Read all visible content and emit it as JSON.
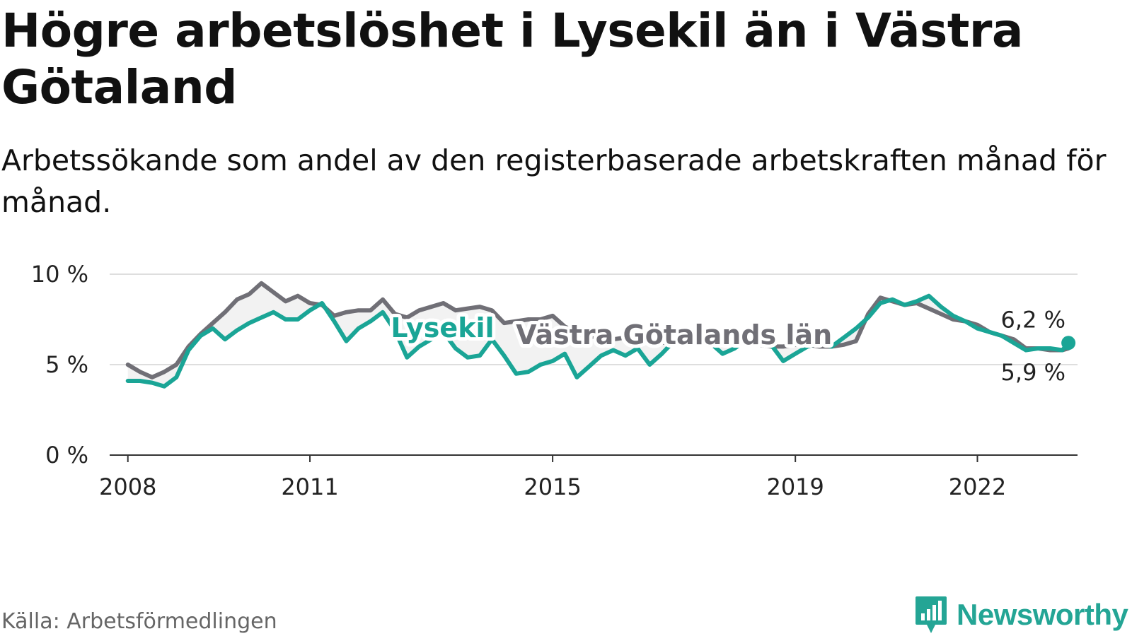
{
  "title": "Högre arbetslöshet i Lysekil än i Västra Götaland",
  "subtitle": "Arbetssökande som andel av den registerbaserade arbetskraften månad för månad.",
  "source": "Källa: Arbetsförmedlingen",
  "brand": "Newsworthy",
  "colors": {
    "lysekil": "#1aa596",
    "region": "#706f76",
    "fill": "#f2f2f2",
    "grid": "#dedede",
    "axis": "#333333"
  },
  "chart_data": {
    "type": "line",
    "title": "Högre arbetslöshet i Lysekil än i Västra Götaland",
    "xlabel": "",
    "ylabel": "",
    "xlim": [
      2007.7,
      2023.65
    ],
    "ylim": [
      0,
      10
    ],
    "yticks": [
      0,
      5,
      10
    ],
    "ytick_labels": [
      "0 %",
      "5 %",
      "10 %"
    ],
    "xticks": [
      2008,
      2011,
      2015,
      2019,
      2022
    ],
    "xtick_labels": [
      "2008",
      "2011",
      "2015",
      "2019",
      "2022"
    ],
    "grid": true,
    "legend": "inline labels",
    "series": [
      {
        "name": "Lysekil",
        "label": "Lysekil",
        "label_year": 2012.8,
        "label_value": 7.0,
        "end_label": "6,2 %",
        "x": [
          2008.0,
          2008.2,
          2008.4,
          2008.6,
          2008.8,
          2009.0,
          2009.2,
          2009.4,
          2009.6,
          2009.8,
          2010.0,
          2010.2,
          2010.4,
          2010.6,
          2010.8,
          2011.0,
          2011.2,
          2011.4,
          2011.6,
          2011.8,
          2012.0,
          2012.2,
          2012.4,
          2012.6,
          2012.8,
          2013.0,
          2013.2,
          2013.4,
          2013.6,
          2013.8,
          2014.0,
          2014.2,
          2014.4,
          2014.6,
          2014.8,
          2015.0,
          2015.2,
          2015.4,
          2015.6,
          2015.8,
          2016.0,
          2016.2,
          2016.4,
          2016.6,
          2016.8,
          2017.0,
          2017.2,
          2017.4,
          2017.6,
          2017.8,
          2018.0,
          2018.2,
          2018.4,
          2018.6,
          2018.8,
          2019.0,
          2019.2,
          2019.4,
          2019.6,
          2019.8,
          2020.0,
          2020.2,
          2020.4,
          2020.6,
          2020.8,
          2021.0,
          2021.2,
          2021.4,
          2021.6,
          2021.8,
          2022.0,
          2022.2,
          2022.4,
          2022.6,
          2022.8,
          2023.0,
          2023.2,
          2023.4,
          2023.5
        ],
        "values": [
          4.1,
          4.1,
          4.0,
          3.8,
          4.3,
          5.8,
          6.6,
          7.0,
          6.4,
          6.9,
          7.3,
          7.6,
          7.9,
          7.5,
          7.5,
          8.0,
          8.4,
          7.4,
          6.3,
          7.0,
          7.4,
          7.9,
          6.9,
          5.4,
          6.0,
          6.4,
          6.8,
          5.9,
          5.4,
          5.5,
          6.4,
          5.5,
          4.5,
          4.6,
          5.0,
          5.2,
          5.6,
          4.3,
          4.9,
          5.5,
          5.8,
          5.5,
          5.9,
          5.0,
          5.6,
          6.3,
          6.6,
          6.4,
          6.2,
          5.6,
          5.9,
          6.4,
          6.3,
          6.1,
          5.2,
          5.6,
          6.0,
          6.2,
          6.0,
          6.5,
          7.0,
          7.6,
          8.4,
          8.6,
          8.3,
          8.5,
          8.8,
          8.2,
          7.7,
          7.4,
          7.0,
          6.8,
          6.6,
          6.2,
          5.8,
          5.9,
          5.9,
          5.8,
          6.2
        ]
      },
      {
        "name": "Västra Götalands län",
        "label": "Västra Götalands län",
        "label_year": 2017.0,
        "label_value": 6.6,
        "end_label": "5,9 %",
        "x": [
          2008.0,
          2008.2,
          2008.4,
          2008.6,
          2008.8,
          2009.0,
          2009.2,
          2009.4,
          2009.6,
          2009.8,
          2010.0,
          2010.2,
          2010.4,
          2010.6,
          2010.8,
          2011.0,
          2011.2,
          2011.4,
          2011.6,
          2011.8,
          2012.0,
          2012.2,
          2012.4,
          2012.6,
          2012.8,
          2013.0,
          2013.2,
          2013.4,
          2013.6,
          2013.8,
          2014.0,
          2014.2,
          2014.4,
          2014.6,
          2014.8,
          2015.0,
          2015.2,
          2015.4,
          2015.6,
          2015.8,
          2016.0,
          2016.2,
          2016.4,
          2016.6,
          2016.8,
          2017.0,
          2017.2,
          2017.4,
          2017.6,
          2017.8,
          2018.0,
          2018.2,
          2018.4,
          2018.6,
          2018.8,
          2019.0,
          2019.2,
          2019.4,
          2019.6,
          2019.8,
          2020.0,
          2020.2,
          2020.4,
          2020.6,
          2020.8,
          2021.0,
          2021.2,
          2021.4,
          2021.6,
          2021.8,
          2022.0,
          2022.2,
          2022.4,
          2022.6,
          2022.8,
          2023.0,
          2023.2,
          2023.4,
          2023.5
        ],
        "values": [
          5.0,
          4.6,
          4.3,
          4.6,
          5.0,
          6.0,
          6.7,
          7.3,
          7.9,
          8.6,
          8.9,
          9.5,
          9.0,
          8.5,
          8.8,
          8.4,
          8.3,
          7.7,
          7.9,
          8.0,
          8.0,
          8.6,
          7.8,
          7.6,
          8.0,
          8.2,
          8.4,
          8.0,
          8.1,
          8.2,
          8.0,
          7.3,
          7.4,
          7.5,
          7.5,
          7.7,
          7.1,
          6.8,
          6.6,
          6.4,
          6.4,
          6.5,
          6.3,
          6.2,
          6.2,
          6.3,
          6.5,
          6.6,
          6.6,
          6.6,
          6.3,
          6.2,
          6.1,
          6.0,
          6.0,
          6.1,
          6.1,
          6.0,
          6.0,
          6.1,
          6.3,
          7.8,
          8.7,
          8.5,
          8.3,
          8.4,
          8.1,
          7.8,
          7.5,
          7.4,
          7.2,
          6.8,
          6.6,
          6.4,
          5.9,
          5.9,
          5.8,
          5.8,
          5.9
        ]
      }
    ]
  }
}
